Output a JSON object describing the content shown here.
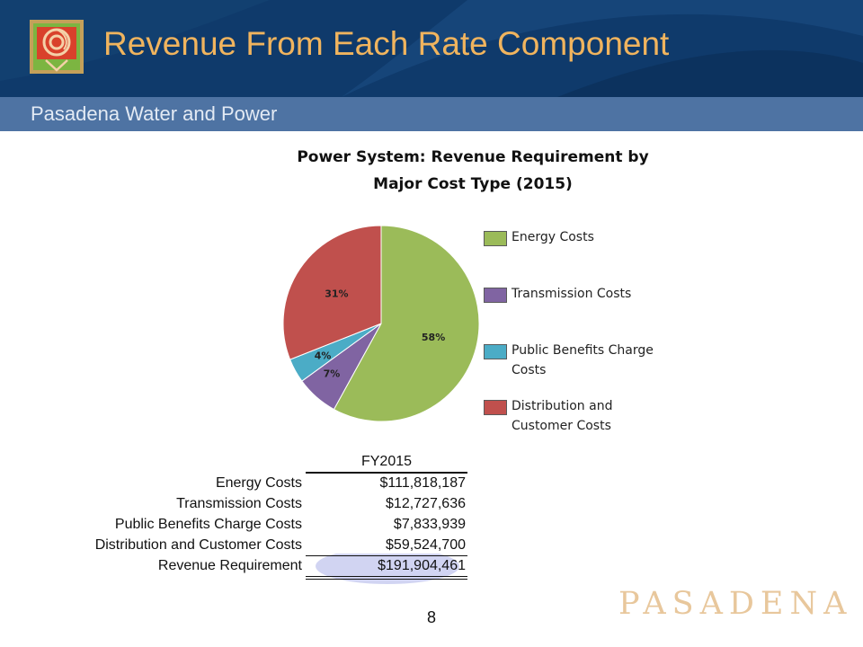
{
  "slide": {
    "title": "Revenue From Each Rate Component",
    "subtitle": "Pasadena Water and Power",
    "page_number": "8",
    "brand_mark": "PASADENA"
  },
  "colors": {
    "header": "#0f3a6b",
    "subheader": "#4e73a3",
    "title_text": "#f0b45e",
    "highlight": "#c9cdf0",
    "brand": "#e8c79c"
  },
  "icons": {
    "logo": "rose-logo-icon"
  },
  "chart_data": [
    {
      "type": "pie",
      "title_lines": [
        "Power System: Revenue Requirement by",
        "Major Cost Type (2015)"
      ],
      "legend_position": "right",
      "slices": [
        {
          "name": "Energy Costs",
          "value": 58,
          "label": "58%",
          "color": "#9bbb59"
        },
        {
          "name": "Transmission Costs",
          "value": 7,
          "label": "7%",
          "color": "#8064a2"
        },
        {
          "name": "Public Benefits Charge Costs",
          "value": 4,
          "label": "4%",
          "color": "#4bacc6"
        },
        {
          "name": "Distribution and Customer Costs",
          "value": 31,
          "label": "31%",
          "color": "#c0504d"
        }
      ],
      "legend": [
        {
          "lines": [
            "Energy Costs"
          ]
        },
        {
          "lines": [
            "Transmission Costs"
          ]
        },
        {
          "lines": [
            "Public Benefits Charge",
            "Costs"
          ]
        },
        {
          "lines": [
            "Distribution and",
            "Customer Costs"
          ]
        }
      ]
    },
    {
      "type": "table",
      "column_header": "FY2015",
      "rows": [
        {
          "label": "Energy Costs",
          "value": "$111,818,187"
        },
        {
          "label": "Transmission Costs",
          "value": "$12,727,636"
        },
        {
          "label": "Public Benefits Charge Costs",
          "value": "$7,833,939"
        },
        {
          "label": "Distribution and Customer Costs",
          "value": "$59,524,700"
        }
      ],
      "total": {
        "label": "Revenue Requirement",
        "value": "$191,904,461",
        "highlighted": true
      }
    }
  ]
}
